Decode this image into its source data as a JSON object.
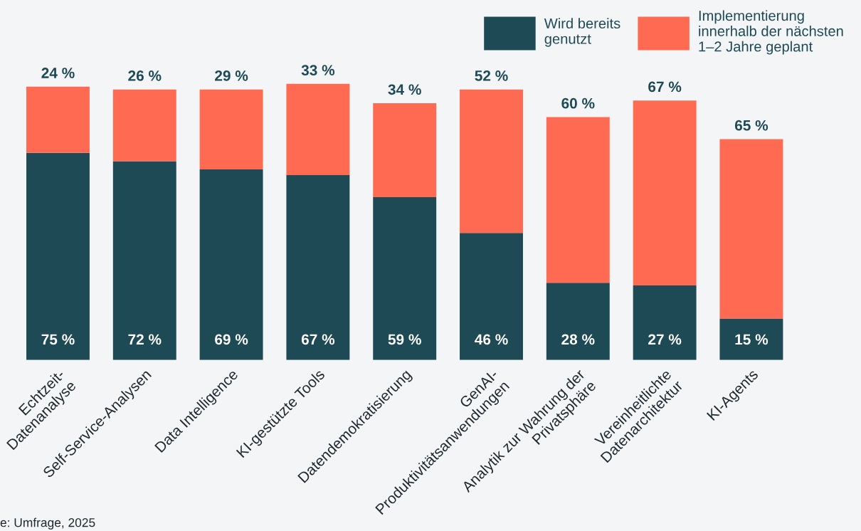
{
  "chart_data": {
    "type": "bar",
    "stacked": true,
    "legend": "top right",
    "grid": false,
    "categories": [
      "Echtzeit-\nDatenanalyse",
      "Self-Service-Analysen",
      "Data Intelligence",
      "KI-gestützte Tools",
      "Datendemokratisierung",
      "GenAI-\nProduktivitätsanwendungen",
      "Analytik zur Wahrung der\nPrivatsphäre",
      "Vereinheitlichte\nDatenarchitektur",
      "KI-Agents"
    ],
    "series": [
      {
        "name": "Wird bereits\ngenutzt",
        "color": "#1e4a55",
        "values": [
          75,
          72,
          69,
          67,
          59,
          46,
          28,
          27,
          15
        ],
        "value_labels": [
          "75 %",
          "72 %",
          "69 %",
          "67 %",
          "59 %",
          "46 %",
          "28 %",
          "27 %",
          "15 %"
        ]
      },
      {
        "name": "Implementierung\ninnerhalb der nächsten\n1–2 Jahre geplant",
        "color": "#ff6b52",
        "values": [
          24,
          26,
          29,
          33,
          34,
          52,
          60,
          67,
          65
        ],
        "value_labels": [
          "24 %",
          "26 %",
          "29 %",
          "33 %",
          "34 %",
          "52 %",
          "60 %",
          "67 %",
          "65 %"
        ]
      }
    ],
    "annotations": [
      "e: Umfrage, 2025"
    ]
  }
}
